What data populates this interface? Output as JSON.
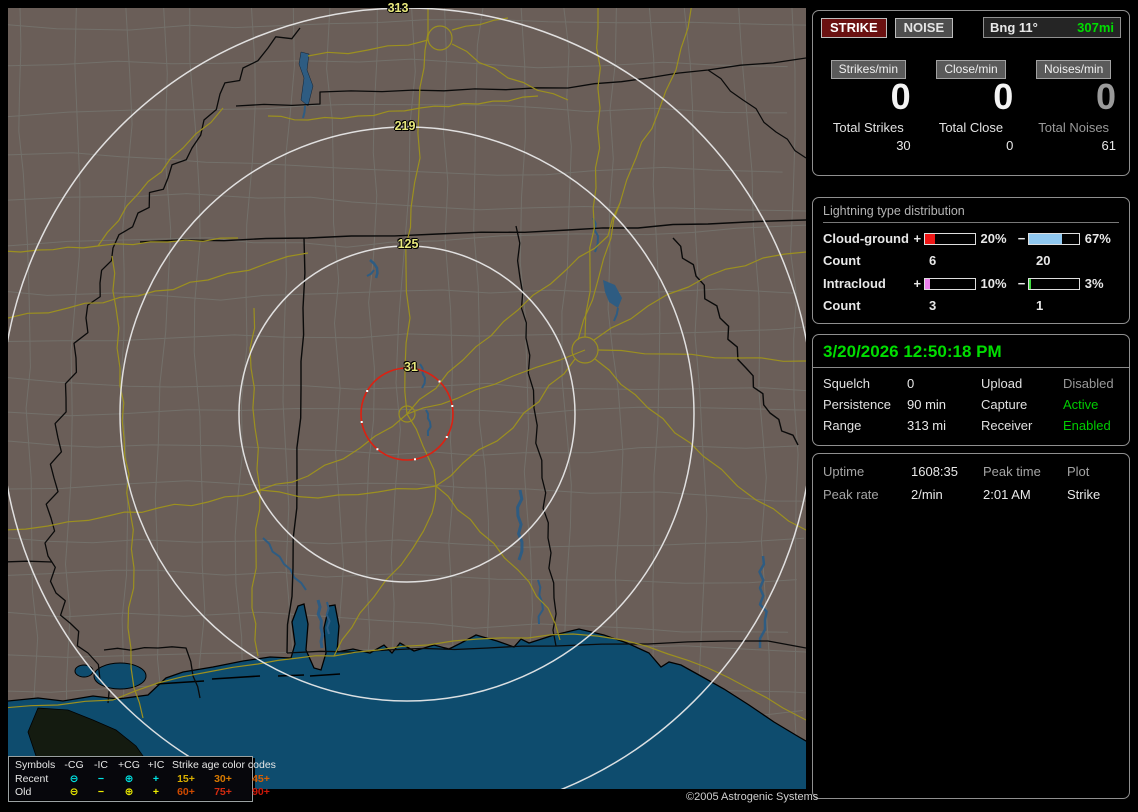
{
  "colors": {
    "accent_green": "#00dd00",
    "strike_button_bg": "#6a1111",
    "ring_label": "#e8e87c",
    "map_land": "#6a5e58",
    "map_water": "#0e4c6e",
    "map_road": "#9c901f",
    "close_alarm_ring": "#dd2011"
  },
  "toolbar": {
    "strike": "STRIKE",
    "noise": "NOISE",
    "bearing": "Bng 11°",
    "range": "307mi"
  },
  "counters": {
    "columns": [
      {
        "label": "Strikes/min",
        "value": "0",
        "total_label": "Total Strikes",
        "total": "30"
      },
      {
        "label": "Close/min",
        "value": "0",
        "total_label": "Total Close",
        "total": "0"
      },
      {
        "label": "Noises/min",
        "value": "0",
        "total_label": "Total Noises",
        "total": "61"
      }
    ]
  },
  "distribution": {
    "title": "Lightning type distribution",
    "count_label": "Count",
    "plus_sign": "+",
    "minus_sign": "−",
    "rows": [
      {
        "label": "Cloud-ground",
        "pos_pct": "20%",
        "neg_pct": "67%",
        "pos_value": 20,
        "neg_value": 67,
        "pos_color": "#ee1616",
        "neg_color": "#90c8f0",
        "pos_count": "6",
        "neg_count": "20"
      },
      {
        "label": "Intracloud",
        "pos_pct": "10%",
        "neg_pct": "3%",
        "pos_value": 10,
        "neg_value": 3,
        "pos_color": "#ee82ee",
        "neg_color": "#3cdc3c",
        "pos_count": "3",
        "neg_count": "1"
      }
    ]
  },
  "status_panel": {
    "datetime": "3/20/2026 12:50:18 PM",
    "rows": [
      {
        "label1": "Squelch",
        "value1": "0",
        "label2": "Upload",
        "value2": "Disabled",
        "state2": "disabled"
      },
      {
        "label1": "Persistence",
        "value1": "90 min",
        "label2": "Capture",
        "value2": "Active",
        "state2": "active"
      },
      {
        "label1": "Range",
        "value1": "313 mi",
        "label2": "Receiver",
        "value2": "Enabled",
        "state2": "active"
      }
    ]
  },
  "session_panel": {
    "rows": [
      {
        "c1": "Uptime",
        "c2": "1608:35",
        "c3": "Peak time",
        "c4": "Plot"
      },
      {
        "c1": "Peak rate",
        "c2": "2/min",
        "c3": "2:01 AM",
        "c4": "Strike"
      }
    ]
  },
  "map": {
    "ring_labels": [
      {
        "text": "313"
      },
      {
        "text": "219"
      },
      {
        "text": "125"
      },
      {
        "text": "31"
      }
    ],
    "copyright": "©2005 Astrogenic Systems"
  },
  "legend": {
    "col_headers": {
      "symbols": "Symbols",
      "neg_cg": "-CG",
      "neg_ic": "-IC",
      "pos_cg": "+CG",
      "pos_ic": "+IC",
      "age_title": "Strike age color codes"
    },
    "symbol_glyphs": {
      "circle_minus": "⊖",
      "minus": "−",
      "circle_plus": "⊕",
      "plus": "+"
    },
    "recent_color": "#00e4e4",
    "old_color": "#ecec00",
    "rows": [
      {
        "label": "Recent",
        "ages": [
          {
            "text": "15+",
            "color": "#d9af00"
          },
          {
            "text": "30+",
            "color": "#d97a00"
          },
          {
            "text": "45+",
            "color": "#d95f00"
          }
        ]
      },
      {
        "label": "Old",
        "ages": [
          {
            "text": "60+",
            "color": "#cf4a00"
          },
          {
            "text": "75+",
            "color": "#d32b10"
          },
          {
            "text": "90+",
            "color": "#cf1708"
          }
        ]
      }
    ]
  }
}
